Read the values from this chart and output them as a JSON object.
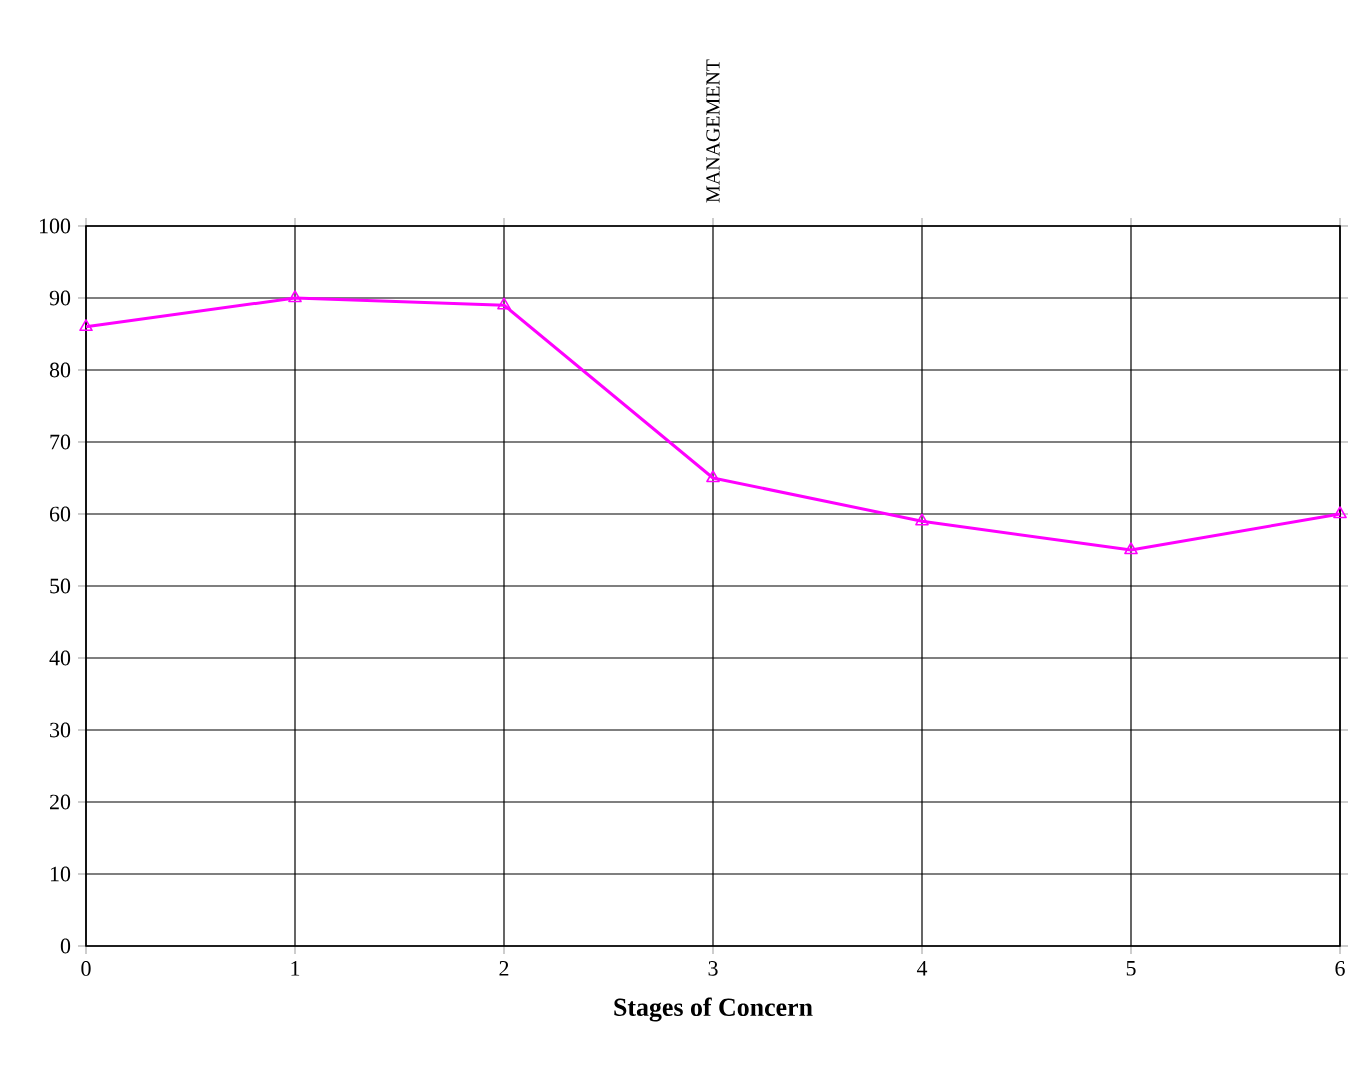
{
  "chart_data": {
    "type": "line",
    "xlabel": "Stages of Concern",
    "annotations": [
      "MANAGEMENT"
    ],
    "x": [
      0,
      1,
      2,
      3,
      4,
      5,
      6
    ],
    "series": [
      {
        "color": "#ff00ff",
        "values": [
          86,
          90,
          89,
          65,
          59,
          55,
          60
        ]
      }
    ],
    "xlim": [
      0,
      6
    ],
    "xticks": [
      0,
      1,
      2,
      3,
      4,
      5,
      6
    ],
    "ylim": [
      0,
      100
    ],
    "yticks": [
      0,
      10,
      20,
      30,
      40,
      50,
      60,
      70,
      80,
      90,
      100
    ],
    "grid": true,
    "marker": "triangle",
    "line_style": "solid"
  }
}
